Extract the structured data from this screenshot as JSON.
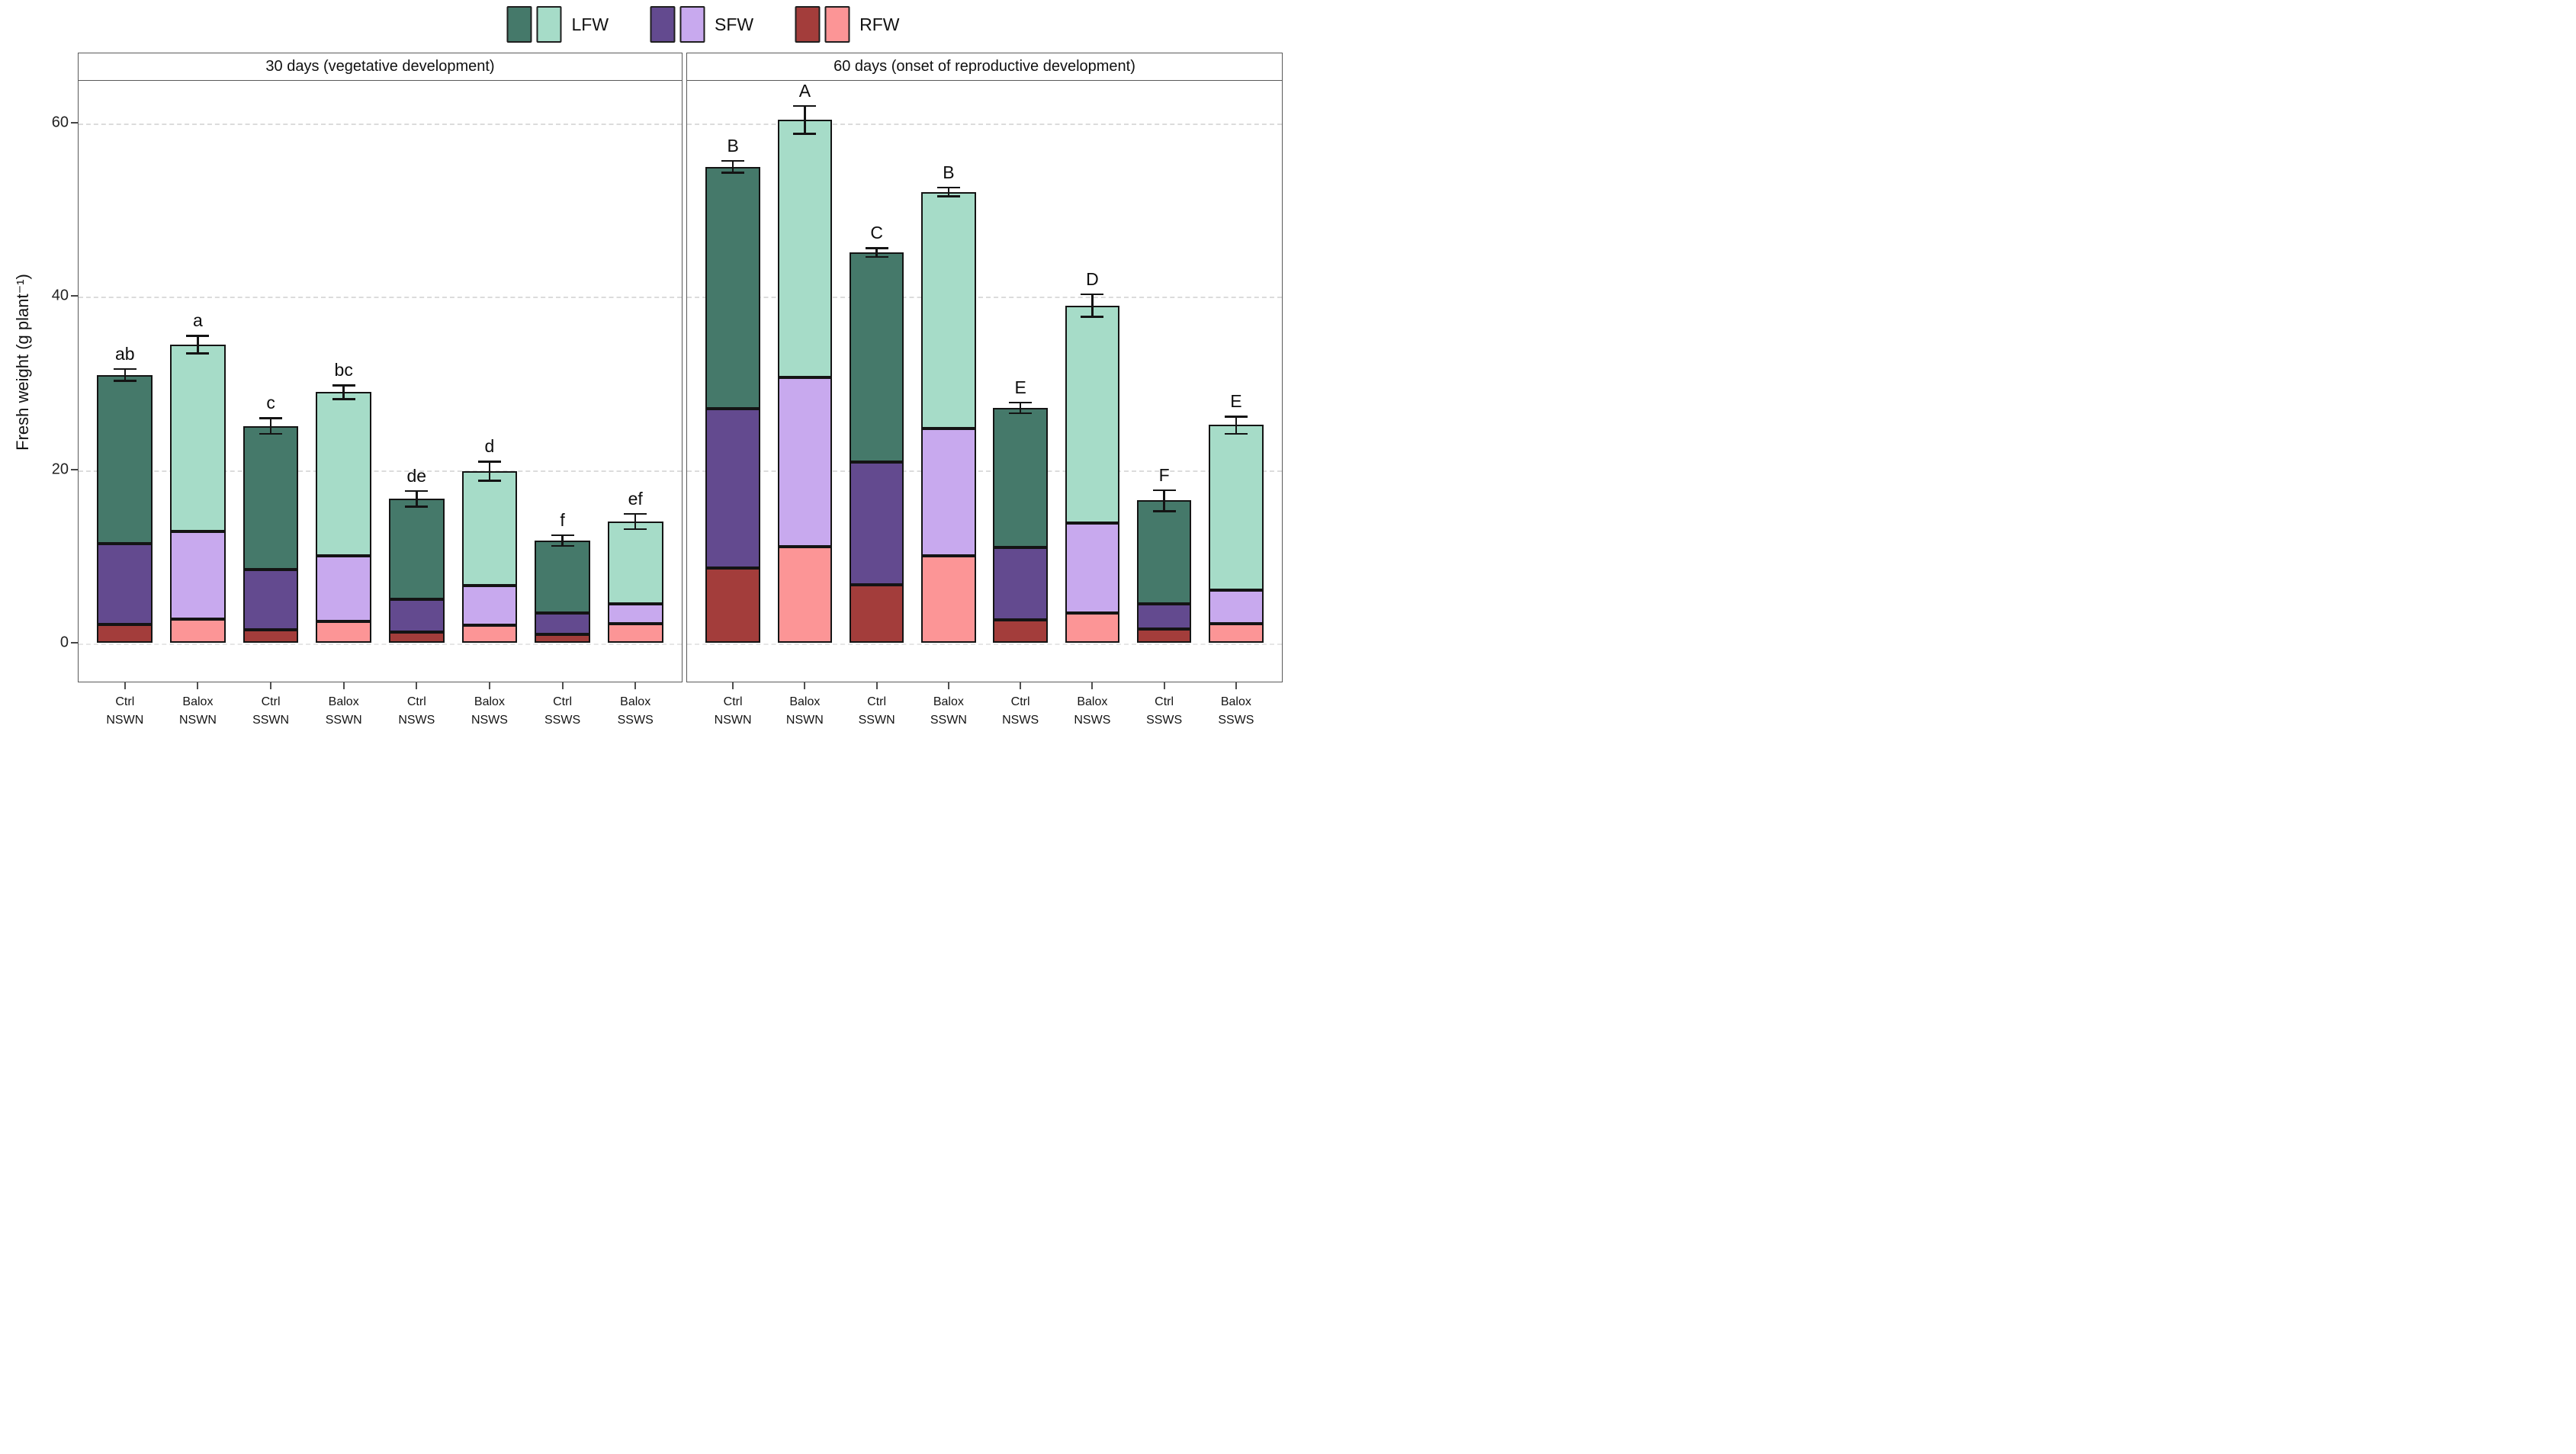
{
  "figure": {
    "ylabel": "Fresh weight (g plant⁻¹)",
    "legend": [
      {
        "label": "LFW",
        "dark": "#45796a",
        "light": "#a6dcc8"
      },
      {
        "label": "SFW",
        "dark": "#634a8f",
        "light": "#c8a9ee"
      },
      {
        "label": "RFW",
        "dark": "#a33d3b",
        "light": "#fc9596"
      }
    ]
  },
  "chart_data": {
    "type": "bar",
    "stacked": true,
    "title": "",
    "xlabel": "",
    "ylabel": "Fresh weight (g plant⁻¹)",
    "ylim": [
      0,
      65
    ],
    "yticks": [
      0,
      20,
      40,
      60
    ],
    "grid": "horizontal dashed at 0, 20, 40, 60",
    "legend_position": "top center",
    "segment_order_bottom_to_top": [
      "RFW",
      "SFW",
      "LFW"
    ],
    "shade_rule": "Ctrl bars use dark colors, Balox bars use light colors",
    "colors": {
      "LFW_dark": "#45796a",
      "LFW_light": "#a6dcc8",
      "SFW_dark": "#634a8f",
      "SFW_light": "#c8a9ee",
      "RFW_dark": "#a33d3b",
      "RFW_light": "#fc9596"
    },
    "error_bars": "± shown at stacked total, values in g per plant",
    "panels": [
      {
        "title": "30 days (vegetative development)",
        "bars": [
          {
            "treatment": "Ctrl",
            "regime": "NSWN",
            "shade": "dark",
            "letter": "ab",
            "RFW": 2.1,
            "SFW": 9.3,
            "LFW": 19.5,
            "total": 30.9,
            "error": 0.7
          },
          {
            "treatment": "Balox",
            "regime": "NSWN",
            "shade": "light",
            "letter": "a",
            "RFW": 2.7,
            "SFW": 10.1,
            "LFW": 21.6,
            "total": 34.4,
            "error": 1.0
          },
          {
            "treatment": "Ctrl",
            "regime": "SSWN",
            "shade": "dark",
            "letter": "c",
            "RFW": 1.5,
            "SFW": 6.9,
            "LFW": 16.6,
            "total": 25.0,
            "error": 0.9
          },
          {
            "treatment": "Balox",
            "regime": "SSWN",
            "shade": "light",
            "letter": "bc",
            "RFW": 2.5,
            "SFW": 7.5,
            "LFW": 18.9,
            "total": 28.9,
            "error": 0.8
          },
          {
            "treatment": "Ctrl",
            "regime": "NSWS",
            "shade": "dark",
            "letter": "de",
            "RFW": 1.2,
            "SFW": 3.8,
            "LFW": 11.6,
            "total": 16.6,
            "error": 0.9
          },
          {
            "treatment": "Balox",
            "regime": "NSWS",
            "shade": "light",
            "letter": "d",
            "RFW": 2.0,
            "SFW": 4.6,
            "LFW": 13.2,
            "total": 19.8,
            "error": 1.1
          },
          {
            "treatment": "Ctrl",
            "regime": "SSWS",
            "shade": "dark",
            "letter": "f",
            "RFW": 1.0,
            "SFW": 2.4,
            "LFW": 8.4,
            "total": 11.8,
            "error": 0.6
          },
          {
            "treatment": "Balox",
            "regime": "SSWS",
            "shade": "light",
            "letter": "ef",
            "RFW": 2.2,
            "SFW": 2.3,
            "LFW": 9.5,
            "total": 14.0,
            "error": 0.9
          }
        ]
      },
      {
        "title": "60 days (onset of reproductive development)",
        "bars": [
          {
            "treatment": "Ctrl",
            "regime": "NSWN",
            "shade": "dark",
            "letter": "B",
            "RFW": 8.6,
            "SFW": 18.4,
            "LFW": 27.9,
            "total": 54.9,
            "error": 0.7
          },
          {
            "treatment": "Balox",
            "regime": "NSWN",
            "shade": "light",
            "letter": "A",
            "RFW": 11.1,
            "SFW": 19.5,
            "LFW": 29.7,
            "total": 60.3,
            "error": 1.6
          },
          {
            "treatment": "Ctrl",
            "regime": "SSWN",
            "shade": "dark",
            "letter": "C",
            "RFW": 6.7,
            "SFW": 14.1,
            "LFW": 24.2,
            "total": 45.0,
            "error": 0.5
          },
          {
            "treatment": "Balox",
            "regime": "SSWN",
            "shade": "light",
            "letter": "B",
            "RFW": 10.0,
            "SFW": 14.7,
            "LFW": 27.3,
            "total": 52.0,
            "error": 0.5
          },
          {
            "treatment": "Ctrl",
            "regime": "NSWS",
            "shade": "dark",
            "letter": "E",
            "RFW": 2.6,
            "SFW": 8.4,
            "LFW": 16.1,
            "total": 27.1,
            "error": 0.6
          },
          {
            "treatment": "Balox",
            "regime": "NSWS",
            "shade": "light",
            "letter": "D",
            "RFW": 3.4,
            "SFW": 10.4,
            "LFW": 25.1,
            "total": 38.9,
            "error": 1.3
          },
          {
            "treatment": "Ctrl",
            "regime": "SSWS",
            "shade": "dark",
            "letter": "F",
            "RFW": 1.6,
            "SFW": 2.9,
            "LFW": 11.9,
            "total": 16.4,
            "error": 1.2
          },
          {
            "treatment": "Balox",
            "regime": "SSWS",
            "shade": "light",
            "letter": "E",
            "RFW": 2.2,
            "SFW": 3.9,
            "LFW": 19.0,
            "total": 25.1,
            "error": 1.0
          }
        ]
      }
    ]
  }
}
